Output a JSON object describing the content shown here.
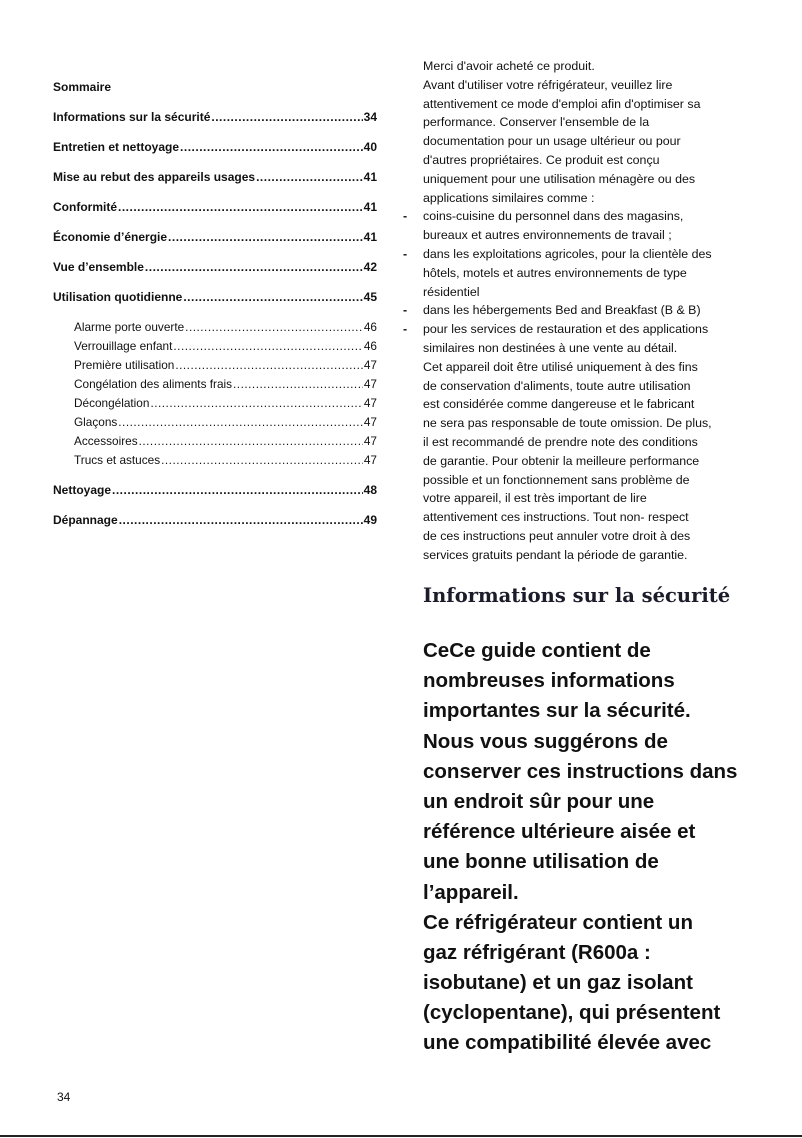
{
  "toc": {
    "title": "Sommaire",
    "entries": [
      {
        "label": "Informations sur la sécurité ",
        "page": "34",
        "level": 1
      },
      {
        "label": "Entretien et nettoyage",
        "page": "40",
        "level": 1
      },
      {
        "label": "Mise au rebut des appareils usages",
        "page": "41",
        "level": 1
      },
      {
        "label": "Conformité ",
        "page": "41",
        "level": 1
      },
      {
        "label": "Économie d’énergie ",
        "page": "41",
        "level": 1
      },
      {
        "label": "Vue d’ensemble",
        "page": "42",
        "level": 1
      },
      {
        "label": "Utilisation quotidienne ",
        "page": "45",
        "level": 1
      },
      {
        "label": "Alarme porte ouverte",
        "page": "46",
        "level": 2
      },
      {
        "label": "Verrouillage enfant ",
        "page": "46",
        "level": 2
      },
      {
        "label": "Première utilisation",
        "page": "47",
        "level": 2
      },
      {
        "label": "Congélation des aliments frais ",
        "page": "47",
        "level": 2
      },
      {
        "label": "Décongélation ",
        "page": "47",
        "level": 2
      },
      {
        "label": "Glaçons",
        "page": "47",
        "level": 2
      },
      {
        "label": "Accessoires",
        "page": "47",
        "level": 2
      },
      {
        "label": "Trucs et astuces",
        "page": "47",
        "level": 2
      },
      {
        "label": "Nettoyage ",
        "page": "48",
        "level": 1
      },
      {
        "label": "Dépannage ",
        "page": "49",
        "level": 1
      }
    ]
  },
  "intro": {
    "lines": [
      {
        "text": "Merci d'avoir acheté ce produit."
      },
      {
        "text": "Avant d'utiliser votre réfrigérateur, veuillez lire"
      },
      {
        "text": "attentivement ce mode d'emploi afin d'optimiser sa"
      },
      {
        "text": "performance. Conserver l'ensemble de la"
      },
      {
        "text": "documentation pour un usage ultérieur ou pour"
      },
      {
        "text": "d'autres propriétaires. Ce produit est conçu"
      },
      {
        "text": "uniquement pour une utilisation ménagère ou des"
      },
      {
        "text": "applications similaires comme :"
      },
      {
        "bullet": "-",
        "text": "coins-cuisine du personnel dans des magasins,"
      },
      {
        "text": "bureaux et autres environnements de travail ;"
      },
      {
        "bullet": "-",
        "text": "dans les exploitations agricoles, pour la clientèle des"
      },
      {
        "text": "hôtels, motels et autres environnements de type"
      },
      {
        "text": "résidentiel"
      },
      {
        "bullet": "-",
        "text": "dans les hébergements Bed and Breakfast (B & B)"
      },
      {
        "bullet": "-",
        "text": "pour les services de restauration et des applications"
      },
      {
        "text": "similaires non destinées à une vente au détail."
      },
      {
        "text": "Cet appareil doit être utilisé uniquement à des fins"
      },
      {
        "text": "de conservation d'aliments, toute autre utilisation"
      },
      {
        "text": "est considérée comme dangereuse et le fabricant"
      },
      {
        "text": "ne sera pas responsable de toute omission. De plus,"
      },
      {
        "text": "il est recommandé de prendre note des conditions"
      },
      {
        "text": "de garantie. Pour obtenir la meilleure performance"
      },
      {
        "text": "possible et un fonctionnement sans problème de"
      },
      {
        "text": "votre appareil, il est très important de lire"
      },
      {
        "text": "attentivement ces instructions. Tout non- respect"
      },
      {
        "text": "de ces instructions peut annuler votre droit à des"
      },
      {
        "text": "services gratuits pendant la période de garantie."
      }
    ]
  },
  "safety": {
    "heading": "Informations sur la sécurité",
    "lines": [
      "CeCe guide contient de",
      "nombreuses informations",
      "importantes sur la sécurité.",
      "Nous vous suggérons de",
      "conserver ces instructions dans",
      "un endroit sûr pour une",
      "référence ultérieure aisée et",
      "une bonne utilisation de",
      "l’appareil.",
      "Ce réfrigérateur contient un",
      "gaz réfrigérant (R600a :",
      "isobutane) et un gaz isolant",
      "(cyclopentane), qui présentent",
      "une compatibilité élevée avec"
    ]
  },
  "page_number": "34"
}
